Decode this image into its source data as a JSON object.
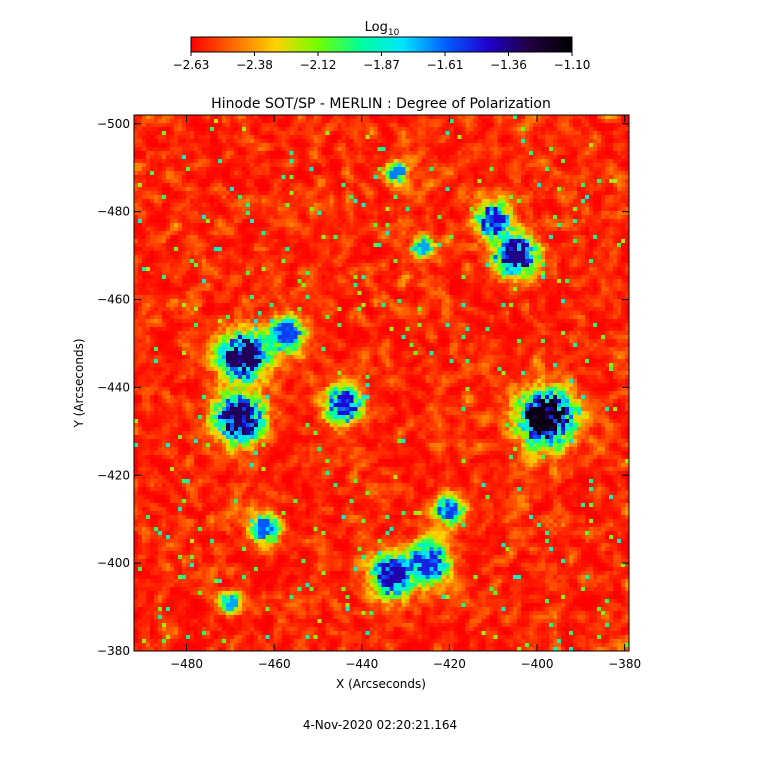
{
  "chart_data": {
    "type": "heatmap",
    "title": "Hinode SOT/SP - MERLIN : Degree of Polarization",
    "xlabel": "X (Arcseconds)",
    "ylabel": "Y (Arcseconds)",
    "xlim": [
      -492,
      -379
    ],
    "ylim": [
      -502,
      -380
    ],
    "x_ticks": [
      -480,
      -460,
      -440,
      -420,
      -400,
      -380
    ],
    "y_ticks": [
      -380,
      -400,
      -420,
      -440,
      -460,
      -480,
      -500
    ],
    "colorbar": {
      "label_main": "Log",
      "label_sub": "10",
      "range": [
        -2.63,
        -1.1
      ],
      "ticks": [
        "-2.63",
        "-2.38",
        "-2.12",
        "-1.87",
        "-1.61",
        "-1.36",
        "-1.10"
      ],
      "colormap": [
        "#ff0000",
        "#ff6a00",
        "#ffd200",
        "#72ff00",
        "#00ff9a",
        "#00e6ff",
        "#0060ff",
        "#2000d0",
        "#200040",
        "#000000"
      ]
    },
    "background_range": [
      -2.63,
      -2.2
    ],
    "regions": [
      {
        "x": -468,
        "y": -433,
        "value": -1.3,
        "spread": 3.5
      },
      {
        "x": -467,
        "y": -447,
        "value": -1.3,
        "spread": 3.5
      },
      {
        "x": -457,
        "y": -452,
        "value": -1.55,
        "spread": 2.5
      },
      {
        "x": -444,
        "y": -436,
        "value": -1.45,
        "spread": 2.5
      },
      {
        "x": -433,
        "y": -397,
        "value": -1.4,
        "spread": 3.0
      },
      {
        "x": -425,
        "y": -400,
        "value": -1.5,
        "spread": 3.0
      },
      {
        "x": -420,
        "y": -412,
        "value": -1.55,
        "spread": 2.0
      },
      {
        "x": -398,
        "y": -433,
        "value": -1.15,
        "spread": 4.0
      },
      {
        "x": -405,
        "y": -470,
        "value": -1.35,
        "spread": 3.0
      },
      {
        "x": -410,
        "y": -478,
        "value": -1.45,
        "spread": 2.5
      },
      {
        "x": -462,
        "y": -408,
        "value": -1.6,
        "spread": 2.0
      },
      {
        "x": -432,
        "y": -489,
        "value": -1.65,
        "spread": 1.5
      },
      {
        "x": -470,
        "y": -391,
        "value": -1.7,
        "spread": 1.5
      },
      {
        "x": -426,
        "y": -472,
        "value": -1.7,
        "spread": 1.5
      }
    ]
  },
  "timestamp": "4-Nov-2020 02:20:21.164"
}
